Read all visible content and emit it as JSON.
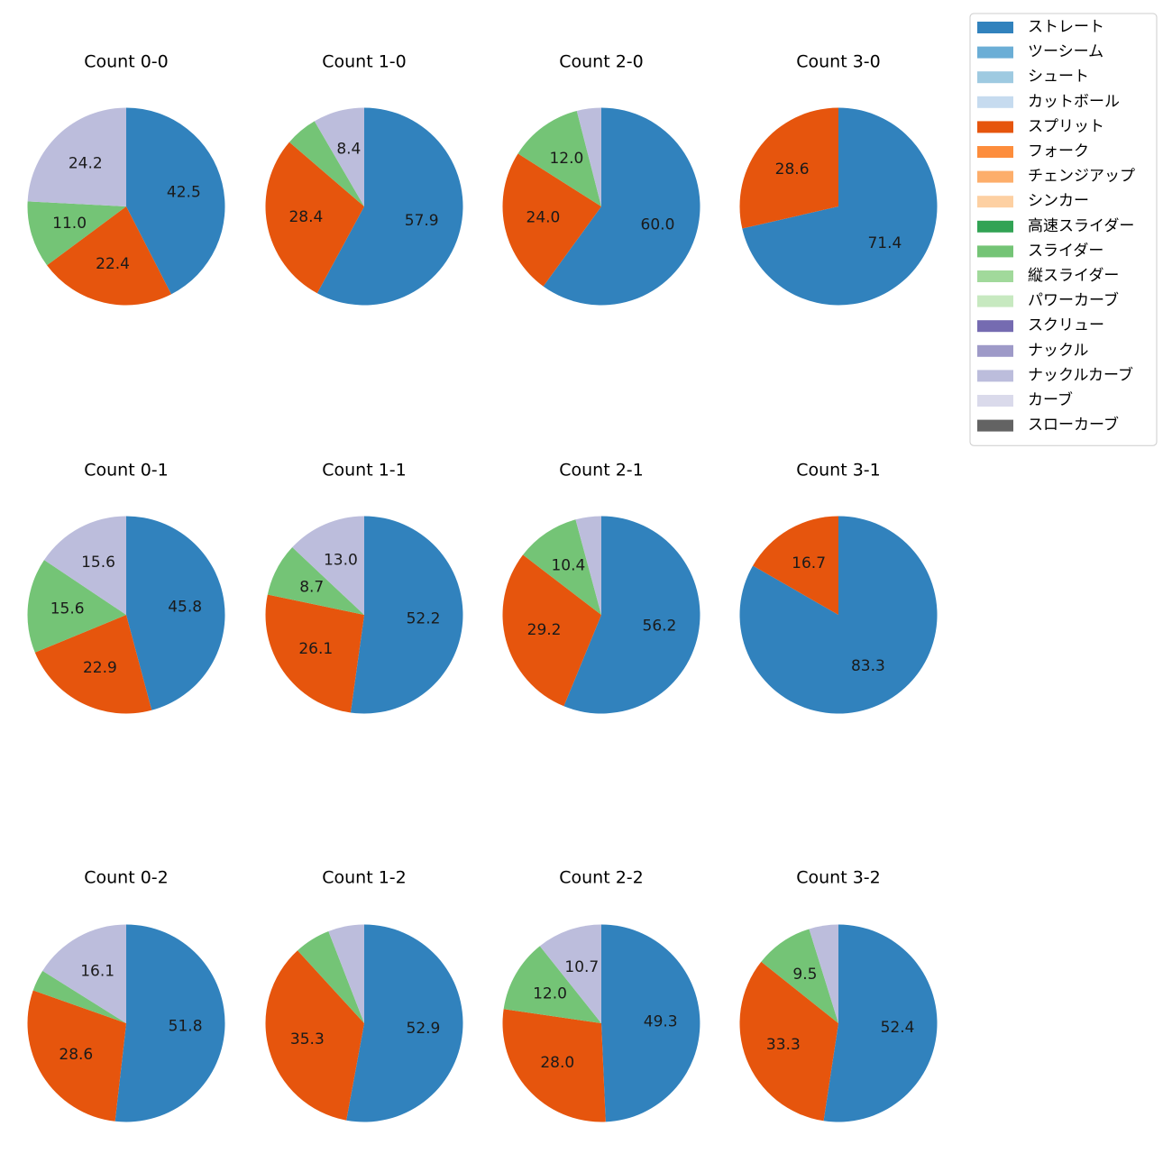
{
  "chart_data": {
    "type": "pie",
    "start_angle_deg": 90,
    "direction": "clockwise",
    "label_format": "one-decimal percent, shown when slice ≥ about 8%",
    "legend": {
      "placement": "top-right",
      "entries": [
        {
          "name": "ストレート",
          "color": "#3182bd"
        },
        {
          "name": "ツーシーム",
          "color": "#6baed6"
        },
        {
          "name": "シュート",
          "color": "#9ecae1"
        },
        {
          "name": "カットボール",
          "color": "#c6dbef"
        },
        {
          "name": "スプリット",
          "color": "#e6550d"
        },
        {
          "name": "フォーク",
          "color": "#fd8d3c"
        },
        {
          "name": "チェンジアップ",
          "color": "#fdae6b"
        },
        {
          "name": "シンカー",
          "color": "#fdd0a2"
        },
        {
          "name": "高速スライダー",
          "color": "#31a354"
        },
        {
          "name": "スライダー",
          "color": "#74c476"
        },
        {
          "name": "縦スライダー",
          "color": "#a1d99b"
        },
        {
          "name": "パワーカーブ",
          "color": "#c7e9c0"
        },
        {
          "name": "スクリュー",
          "color": "#756bb1"
        },
        {
          "name": "ナックル",
          "color": "#9e9ac8"
        },
        {
          "name": "ナックルカーブ",
          "color": "#bcbddc"
        },
        {
          "name": "カーブ",
          "color": "#dadaeb"
        },
        {
          "name": "スローカーブ",
          "color": "#636363"
        }
      ]
    },
    "pies": [
      {
        "title": "Count 0-0",
        "slices": [
          {
            "pitch": "ストレート",
            "value": 42.5
          },
          {
            "pitch": "スプリット",
            "value": 22.4
          },
          {
            "pitch": "スライダー",
            "value": 11.0
          },
          {
            "pitch": "ナックルカーブ",
            "value": 24.2
          }
        ]
      },
      {
        "title": "Count 1-0",
        "slices": [
          {
            "pitch": "ストレート",
            "value": 57.9
          },
          {
            "pitch": "スプリット",
            "value": 28.4
          },
          {
            "pitch": "スライダー",
            "value": 5.3
          },
          {
            "pitch": "ナックルカーブ",
            "value": 8.4
          }
        ]
      },
      {
        "title": "Count 2-0",
        "slices": [
          {
            "pitch": "ストレート",
            "value": 60.0
          },
          {
            "pitch": "スプリット",
            "value": 24.0
          },
          {
            "pitch": "スライダー",
            "value": 12.0
          },
          {
            "pitch": "ナックルカーブ",
            "value": 4.0
          }
        ]
      },
      {
        "title": "Count 3-0",
        "slices": [
          {
            "pitch": "ストレート",
            "value": 71.4
          },
          {
            "pitch": "スプリット",
            "value": 28.6
          }
        ]
      },
      {
        "title": "Count 0-1",
        "slices": [
          {
            "pitch": "ストレート",
            "value": 45.8
          },
          {
            "pitch": "スプリット",
            "value": 22.9
          },
          {
            "pitch": "スライダー",
            "value": 15.6
          },
          {
            "pitch": "ナックルカーブ",
            "value": 15.6
          }
        ]
      },
      {
        "title": "Count 1-1",
        "slices": [
          {
            "pitch": "ストレート",
            "value": 52.2
          },
          {
            "pitch": "スプリット",
            "value": 26.1
          },
          {
            "pitch": "スライダー",
            "value": 8.7
          },
          {
            "pitch": "ナックルカーブ",
            "value": 13.0
          }
        ]
      },
      {
        "title": "Count 2-1",
        "slices": [
          {
            "pitch": "ストレート",
            "value": 56.2
          },
          {
            "pitch": "スプリット",
            "value": 29.2
          },
          {
            "pitch": "スライダー",
            "value": 10.4
          },
          {
            "pitch": "ナックルカーブ",
            "value": 4.2
          }
        ]
      },
      {
        "title": "Count 3-1",
        "slices": [
          {
            "pitch": "ストレート",
            "value": 83.3
          },
          {
            "pitch": "スプリット",
            "value": 16.7
          }
        ]
      },
      {
        "title": "Count 0-2",
        "slices": [
          {
            "pitch": "ストレート",
            "value": 51.8
          },
          {
            "pitch": "スプリット",
            "value": 28.6
          },
          {
            "pitch": "スライダー",
            "value": 3.5
          },
          {
            "pitch": "ナックルカーブ",
            "value": 16.1
          }
        ]
      },
      {
        "title": "Count 1-2",
        "slices": [
          {
            "pitch": "ストレート",
            "value": 52.9
          },
          {
            "pitch": "スプリット",
            "value": 35.3
          },
          {
            "pitch": "スライダー",
            "value": 5.9
          },
          {
            "pitch": "ナックルカーブ",
            "value": 5.9
          }
        ]
      },
      {
        "title": "Count 2-2",
        "slices": [
          {
            "pitch": "ストレート",
            "value": 49.3
          },
          {
            "pitch": "スプリット",
            "value": 28.0
          },
          {
            "pitch": "スライダー",
            "value": 12.0
          },
          {
            "pitch": "ナックルカーブ",
            "value": 10.7
          }
        ]
      },
      {
        "title": "Count 3-2",
        "slices": [
          {
            "pitch": "ストレート",
            "value": 52.4
          },
          {
            "pitch": "スプリット",
            "value": 33.3
          },
          {
            "pitch": "スライダー",
            "value": 9.5
          },
          {
            "pitch": "ナックルカーブ",
            "value": 4.8
          }
        ]
      }
    ]
  }
}
